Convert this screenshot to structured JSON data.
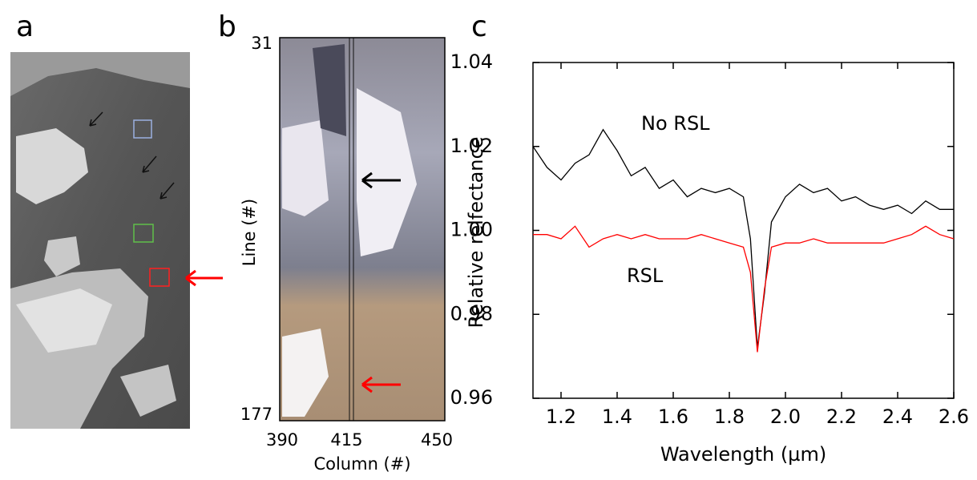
{
  "panel_labels": [
    "a",
    "b",
    "c"
  ],
  "chart_data": [
    {
      "type": "image",
      "xlabel": "Column (#)",
      "ylabel": "Line (#)",
      "xlim": [
        390,
        450
      ],
      "xticks": [
        390,
        415,
        450
      ],
      "ylim": [
        31,
        177
      ],
      "yticks": [
        31,
        177
      ]
    },
    {
      "type": "line",
      "xlabel": "Wavelength (µm)",
      "ylabel": "Relative relfectance",
      "xlim": [
        1.1,
        2.6
      ],
      "xticks": [
        1.2,
        1.4,
        1.6,
        1.8,
        {
          "value": 2,
          "label": "2.0"
        },
        2.2,
        2.4,
        2.6
      ],
      "ylim": [
        0.96,
        1.04
      ],
      "yticks": [
        0.96,
        0.98,
        {
          "value": 1,
          "label": "1.00"
        },
        1.02,
        1.04
      ],
      "x": [
        1.1,
        1.15,
        1.2,
        1.25,
        1.3,
        1.35,
        1.4,
        1.45,
        1.5,
        1.55,
        1.6,
        1.65,
        1.7,
        1.75,
        1.8,
        1.85,
        1.875,
        1.9,
        1.925,
        1.95,
        2.0,
        2.05,
        2.1,
        2.15,
        2.2,
        2.25,
        2.3,
        2.35,
        2.4,
        2.45,
        2.5,
        2.55,
        2.6
      ],
      "series": [
        {
          "name": "No RSL",
          "color": "#000000",
          "values": [
            1.02,
            1.015,
            1.012,
            1.016,
            1.018,
            1.024,
            1.019,
            1.013,
            1.015,
            1.01,
            1.012,
            1.008,
            1.01,
            1.009,
            1.01,
            1.008,
            0.998,
            0.972,
            0.985,
            1.002,
            1.008,
            1.011,
            1.009,
            1.01,
            1.007,
            1.008,
            1.006,
            1.005,
            1.006,
            1.004,
            1.007,
            1.005,
            1.005
          ]
        },
        {
          "name": "RSL",
          "color": "#ff0000",
          "values": [
            0.999,
            0.999,
            0.998,
            1.001,
            0.996,
            0.998,
            0.999,
            0.998,
            0.999,
            0.998,
            0.998,
            0.998,
            0.999,
            0.998,
            0.997,
            0.996,
            0.99,
            0.971,
            0.986,
            0.996,
            0.997,
            0.997,
            0.998,
            0.997,
            0.997,
            0.997,
            0.997,
            0.997,
            0.998,
            0.999,
            1.001,
            0.999,
            0.998
          ]
        }
      ]
    }
  ]
}
